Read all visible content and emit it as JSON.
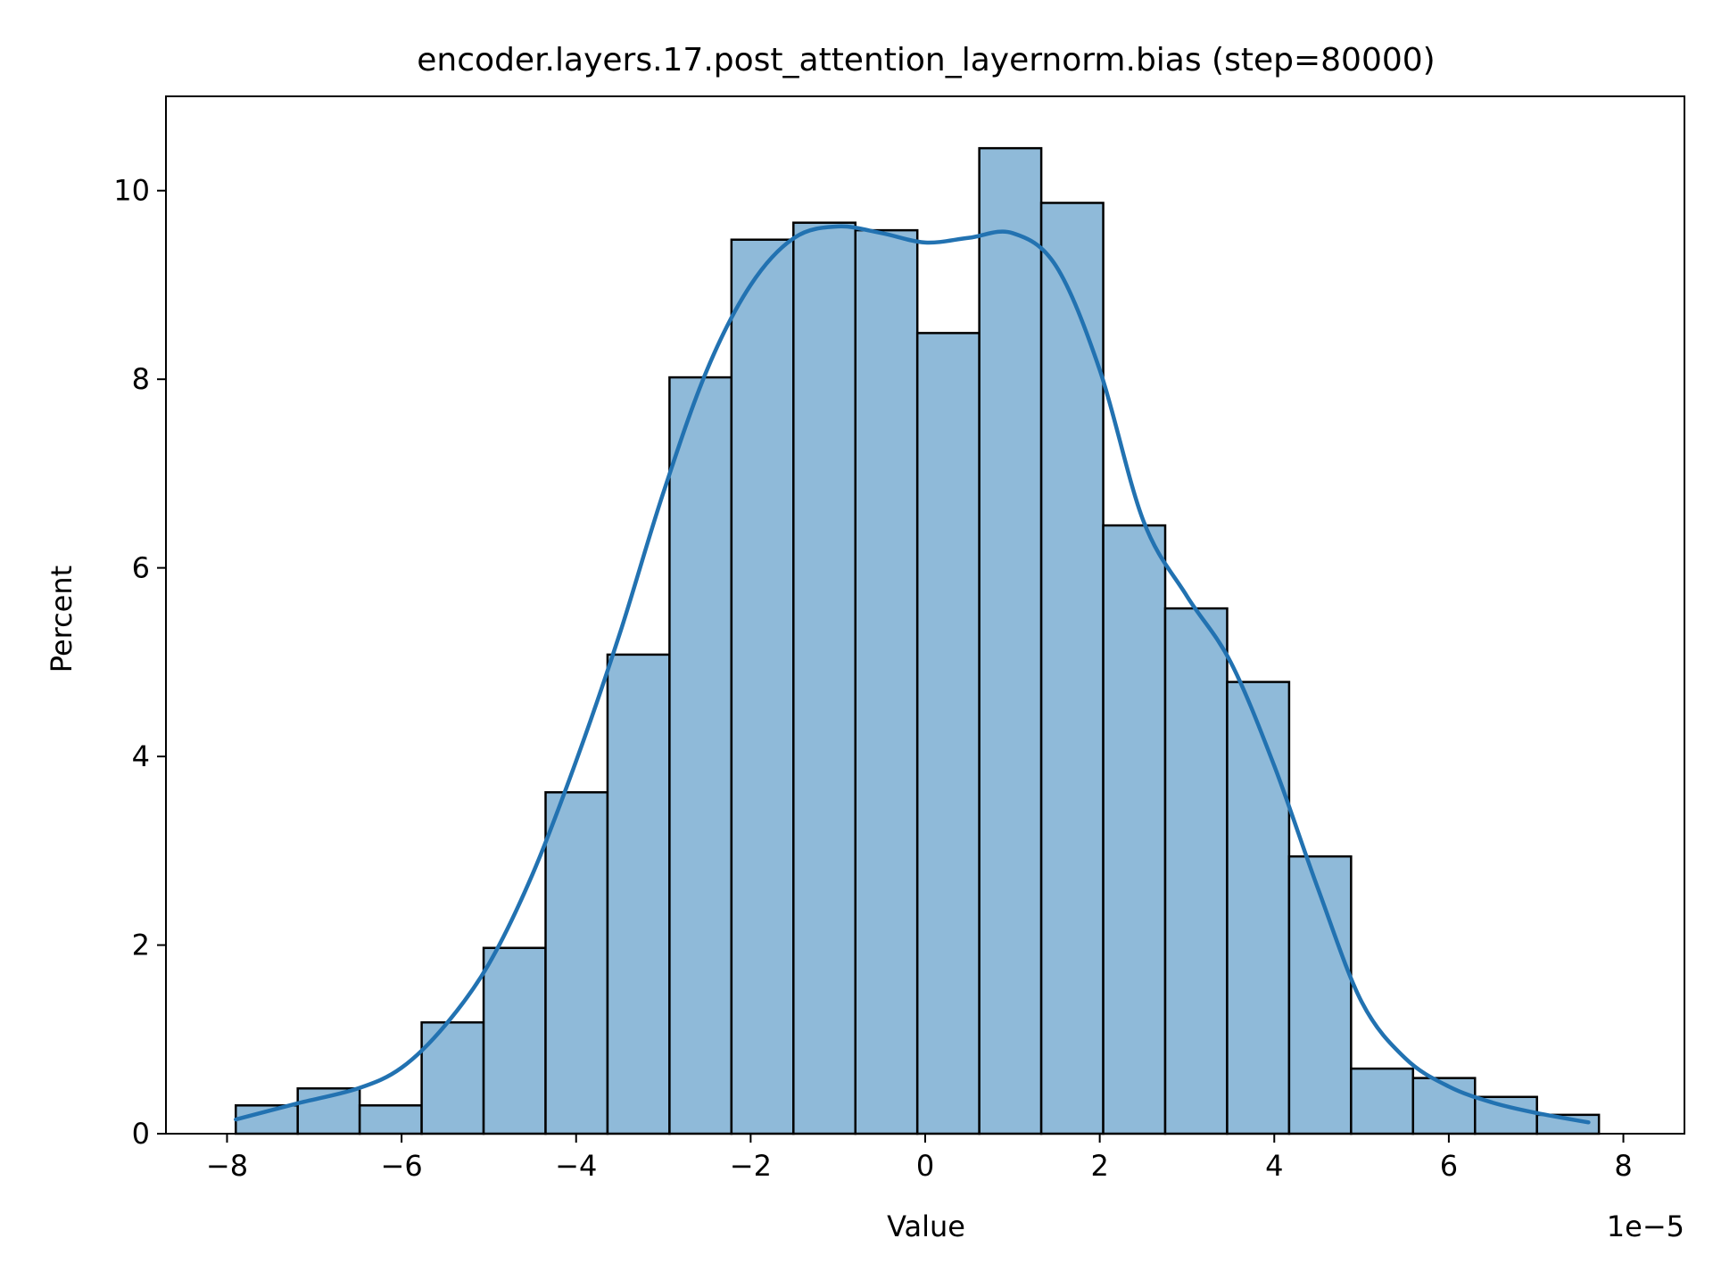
{
  "chart_data": {
    "type": "bar",
    "title": "encoder.layers.17.post_attention_layernorm.bias (step=80000)",
    "xlabel": "Value",
    "ylabel": "Percent",
    "x_offset_label": "1e−5",
    "xlim": [
      -8.7,
      8.7
    ],
    "ylim": [
      0,
      11.0
    ],
    "x_ticks": [
      -8,
      -6,
      -4,
      -2,
      0,
      2,
      4,
      6,
      8
    ],
    "x_tick_labels": [
      "−8",
      "−6",
      "−4",
      "−2",
      "0",
      "2",
      "4",
      "6",
      "8"
    ],
    "y_ticks": [
      0,
      2,
      4,
      6,
      8,
      10
    ],
    "y_tick_labels": [
      "0",
      "2",
      "4",
      "6",
      "8",
      "10"
    ],
    "grid": false,
    "bins": {
      "edges": [
        -7.9,
        -7.19,
        -6.48,
        -5.77,
        -5.06,
        -4.35,
        -3.64,
        -2.93,
        -2.22,
        -1.51,
        -0.8,
        -0.09,
        0.62,
        1.33,
        2.04,
        2.75,
        3.46,
        4.17,
        4.88,
        5.59,
        6.3,
        7.01,
        7.72
      ],
      "values": [
        0.3,
        0.48,
        0.3,
        1.18,
        1.97,
        3.62,
        5.08,
        8.02,
        9.48,
        9.66,
        9.58,
        8.49,
        10.45,
        9.87,
        6.45,
        5.57,
        4.79,
        2.94,
        0.69,
        0.59,
        0.39,
        0.2
      ]
    },
    "kde": {
      "x": [
        -7.9,
        -7.2,
        -6.5,
        -6.0,
        -5.5,
        -5.0,
        -4.5,
        -4.0,
        -3.5,
        -3.0,
        -2.5,
        -2.0,
        -1.5,
        -1.0,
        -0.5,
        0.0,
        0.5,
        1.0,
        1.5,
        2.0,
        2.5,
        3.0,
        3.5,
        4.0,
        4.5,
        5.0,
        5.5,
        6.0,
        6.5,
        7.0,
        7.6
      ],
      "y": [
        0.15,
        0.32,
        0.48,
        0.7,
        1.15,
        1.8,
        2.75,
        3.95,
        5.3,
        6.8,
        8.1,
        9.0,
        9.5,
        9.62,
        9.55,
        9.45,
        9.5,
        9.55,
        9.2,
        8.1,
        6.5,
        5.7,
        5.0,
        3.9,
        2.6,
        1.4,
        0.8,
        0.5,
        0.33,
        0.22,
        0.12
      ]
    },
    "colors": {
      "bar_fill": "#8fbad9",
      "bar_edge": "#000000",
      "kde_line": "#2272b1"
    }
  }
}
